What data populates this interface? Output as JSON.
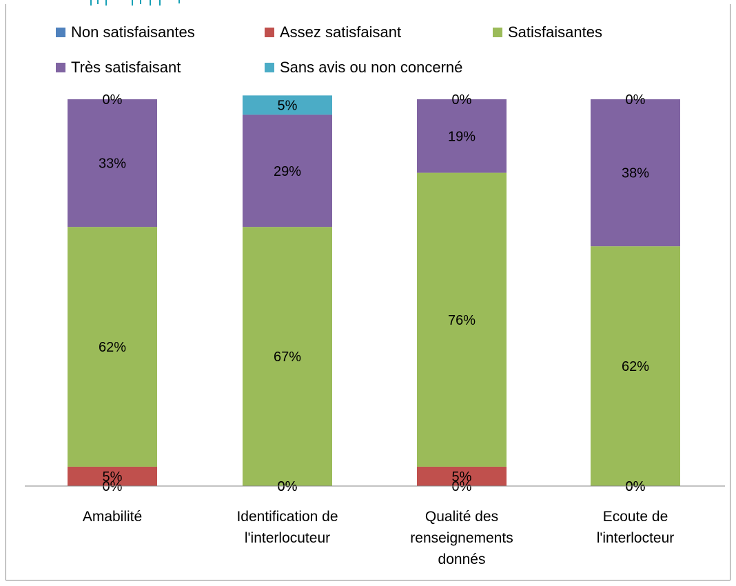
{
  "chart_data": {
    "type": "bar",
    "stacked": true,
    "categories": [
      [
        "Amabilité"
      ],
      [
        "Identification de",
        "l'interlocuteur"
      ],
      [
        "Qualité des",
        "renseignements",
        "donnés"
      ],
      [
        "Ecoute de",
        "l'interlocteur"
      ]
    ],
    "series": [
      {
        "name": "Non satisfaisantes",
        "color": "#4F81BD",
        "values": [
          0,
          0,
          0,
          0
        ]
      },
      {
        "name": "Assez satisfaisant",
        "color": "#C0504D",
        "values": [
          5,
          0,
          5,
          0
        ]
      },
      {
        "name": "Satisfaisantes",
        "color": "#9BBB59",
        "values": [
          62,
          67,
          76,
          62
        ]
      },
      {
        "name": "Très satisfaisant",
        "color": "#8064A2",
        "values": [
          33,
          29,
          19,
          38
        ]
      },
      {
        "name": "Sans avis ou non concerné",
        "color": "#4BACC6",
        "values": [
          0,
          5,
          0,
          0
        ]
      }
    ],
    "value_suffix": "%",
    "ylim": [
      0,
      100
    ],
    "grid": false,
    "legend_position": "top",
    "title_color": "#17A0B5"
  }
}
